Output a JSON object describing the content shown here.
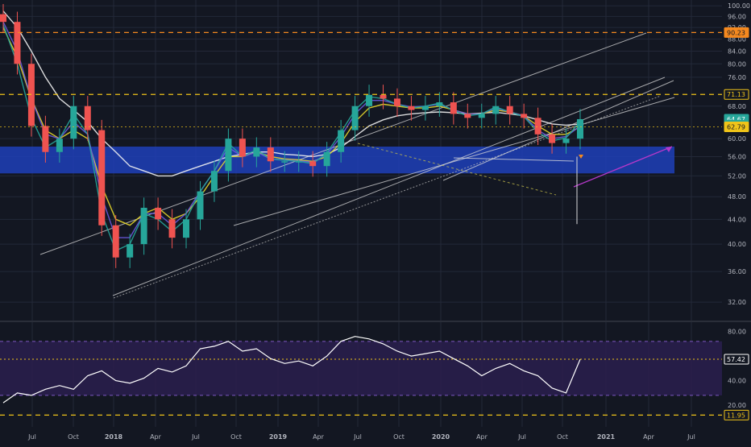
{
  "theme": {
    "background": "#131722",
    "grid": "#232838",
    "axis_text": "#b2b5be",
    "candle_up": "#26a69a",
    "candle_down": "#ef5350",
    "support_zone": "#1e3fb8",
    "resistance_line": "#f0c419",
    "target_line": "#f5891f",
    "target_arrow": "#b538c9",
    "rsi_band": "#2a1f4d",
    "rsi_line": "#ffffff"
  },
  "price_axis": {
    "labels": [
      "100.00",
      "96.00",
      "92.00",
      "88.00",
      "84.00",
      "80.00",
      "76.00",
      "68.00",
      "60.00",
      "56.00",
      "52.00",
      "48.00",
      "44.00",
      "40.00",
      "36.00",
      "32.00"
    ]
  },
  "price_tags": [
    {
      "text": "90.23",
      "value": 90.23,
      "bg": "#f5891f",
      "fg": "#131722"
    },
    {
      "text": "71.13",
      "value": 71.13,
      "bg": "#131722",
      "fg": "#f0c419",
      "border": "#f0c419"
    },
    {
      "text": "64.67",
      "value": 64.67,
      "bg": "#26a69a",
      "fg": "#ffffff"
    },
    {
      "text": "5d 2h",
      "value": 63.2,
      "bg": "#26a69a",
      "fg": "#ffffff"
    },
    {
      "text": "62.79",
      "value": 62.79,
      "bg": "#f0c419",
      "fg": "#131722"
    }
  ],
  "rsi_axis": {
    "labels": [
      "80.00",
      "40.00",
      "20.00"
    ]
  },
  "rsi_tags": [
    {
      "text": "57.42",
      "value": 57.42,
      "bg": "#131722",
      "fg": "#ffffff",
      "border": "#ffffff"
    },
    {
      "text": "11.95",
      "value": 11.95,
      "bg": "#131722",
      "fg": "#f0c419",
      "border": "#f0c419"
    }
  ],
  "time_axis": {
    "labels": [
      "Jul",
      "Oct",
      "2018",
      "Apr",
      "Jul",
      "Oct",
      "2019",
      "Apr",
      "Jul",
      "Oct",
      "2020",
      "Apr",
      "Jul",
      "Oct",
      "2021",
      "Apr",
      "Jul"
    ],
    "bold": [
      "2018",
      "2019",
      "2020",
      "2021"
    ]
  },
  "chart_data": {
    "type": "candlestick",
    "ylim": [
      30,
      101
    ],
    "y_scale": "log",
    "x": [
      "2017-05",
      "2017-06",
      "2017-07",
      "2017-08",
      "2017-09",
      "2017-10",
      "2017-11",
      "2017-12",
      "2018-01",
      "2018-02",
      "2018-03",
      "2018-04",
      "2018-05",
      "2018-06",
      "2018-07",
      "2018-08",
      "2018-09",
      "2018-10",
      "2018-11",
      "2018-12",
      "2019-01",
      "2019-02",
      "2019-03",
      "2019-04",
      "2019-05",
      "2019-06",
      "2019-07",
      "2019-08",
      "2019-09",
      "2019-10",
      "2019-11",
      "2019-12",
      "2020-01",
      "2020-02",
      "2020-03",
      "2020-04",
      "2020-05",
      "2020-06",
      "2020-07",
      "2020-08",
      "2020-09",
      "2020-10"
    ],
    "close": [
      94,
      80,
      63,
      57,
      60,
      68,
      62,
      43,
      38,
      40,
      46,
      44,
      41,
      44,
      49,
      53,
      60,
      56,
      58,
      55,
      55,
      55,
      54,
      57,
      62,
      68,
      71,
      70,
      68,
      67,
      68,
      69,
      66,
      65,
      66,
      68,
      66,
      65,
      61,
      59,
      60,
      64.67
    ],
    "series": [
      {
        "name": "SMA",
        "color": "#f2f2f2",
        "values": [
          98,
          92,
          84,
          76,
          70,
          67,
          64,
          60,
          57,
          54,
          53,
          52,
          52,
          53,
          54,
          55,
          56,
          56.5,
          57,
          57,
          56.5,
          56.3,
          56,
          56.5,
          58,
          60.5,
          63,
          64.5,
          65.5,
          66,
          66.3,
          66.5,
          66.3,
          66,
          66.2,
          66.4,
          66,
          65.5,
          64.5,
          63.5,
          63.2,
          63.5
        ]
      },
      {
        "name": "EMA",
        "color": "#e8d82a",
        "values": [
          92,
          82,
          70,
          62,
          60,
          62,
          60,
          50,
          44,
          43,
          45,
          46,
          44,
          45,
          48,
          52,
          56,
          56,
          57,
          56,
          55.5,
          55.3,
          55,
          56,
          59,
          64,
          67.5,
          68.5,
          68,
          67.5,
          67.5,
          68,
          67,
          66,
          66,
          67,
          66.5,
          65.5,
          63,
          61,
          61,
          62.79
        ]
      },
      {
        "name": "EMA",
        "color": "#6a5ae0",
        "values": [
          94,
          84,
          70,
          61,
          60,
          64,
          61,
          48,
          41,
          41,
          45,
          45,
          43,
          45,
          49,
          53,
          58,
          56,
          57,
          55.5,
          55.3,
          55.1,
          54.8,
          56.5,
          60.5,
          66,
          69.5,
          69.5,
          68.5,
          67.8,
          68,
          68.5,
          67,
          66,
          66,
          67.5,
          66.5,
          65.5,
          62,
          60,
          60.5,
          63
        ]
      },
      {
        "name": "EMA",
        "color": "#26a69a",
        "values": [
          93,
          80,
          65,
          58,
          60,
          66,
          61,
          45,
          39,
          40,
          45,
          44,
          42,
          44,
          49,
          53,
          59,
          56,
          57.5,
          55.5,
          55.2,
          55,
          54.5,
          56.8,
          61.5,
          67,
          70.5,
          70,
          68.5,
          67.5,
          68,
          68.8,
          66.8,
          65.5,
          66,
          67.8,
          66.5,
          65.3,
          61.5,
          59.5,
          60.2,
          64
        ]
      }
    ],
    "levels": [
      90.23,
      71.13,
      62.79
    ],
    "support_zone": [
      52.5,
      58.2
    ],
    "rsi": {
      "ylim": [
        5,
        85
      ],
      "band": [
        28,
        72
      ],
      "levels": [
        57.42,
        11.95
      ],
      "values": [
        22,
        30,
        28,
        33,
        36,
        33,
        44,
        48,
        40,
        38,
        42,
        50,
        47,
        52,
        66,
        68,
        72,
        64,
        66,
        58,
        54,
        56,
        52,
        60,
        72,
        76,
        74,
        70,
        64,
        60,
        62,
        64,
        58,
        52,
        44,
        50,
        54,
        48,
        44,
        34,
        30,
        57.42
      ]
    }
  }
}
